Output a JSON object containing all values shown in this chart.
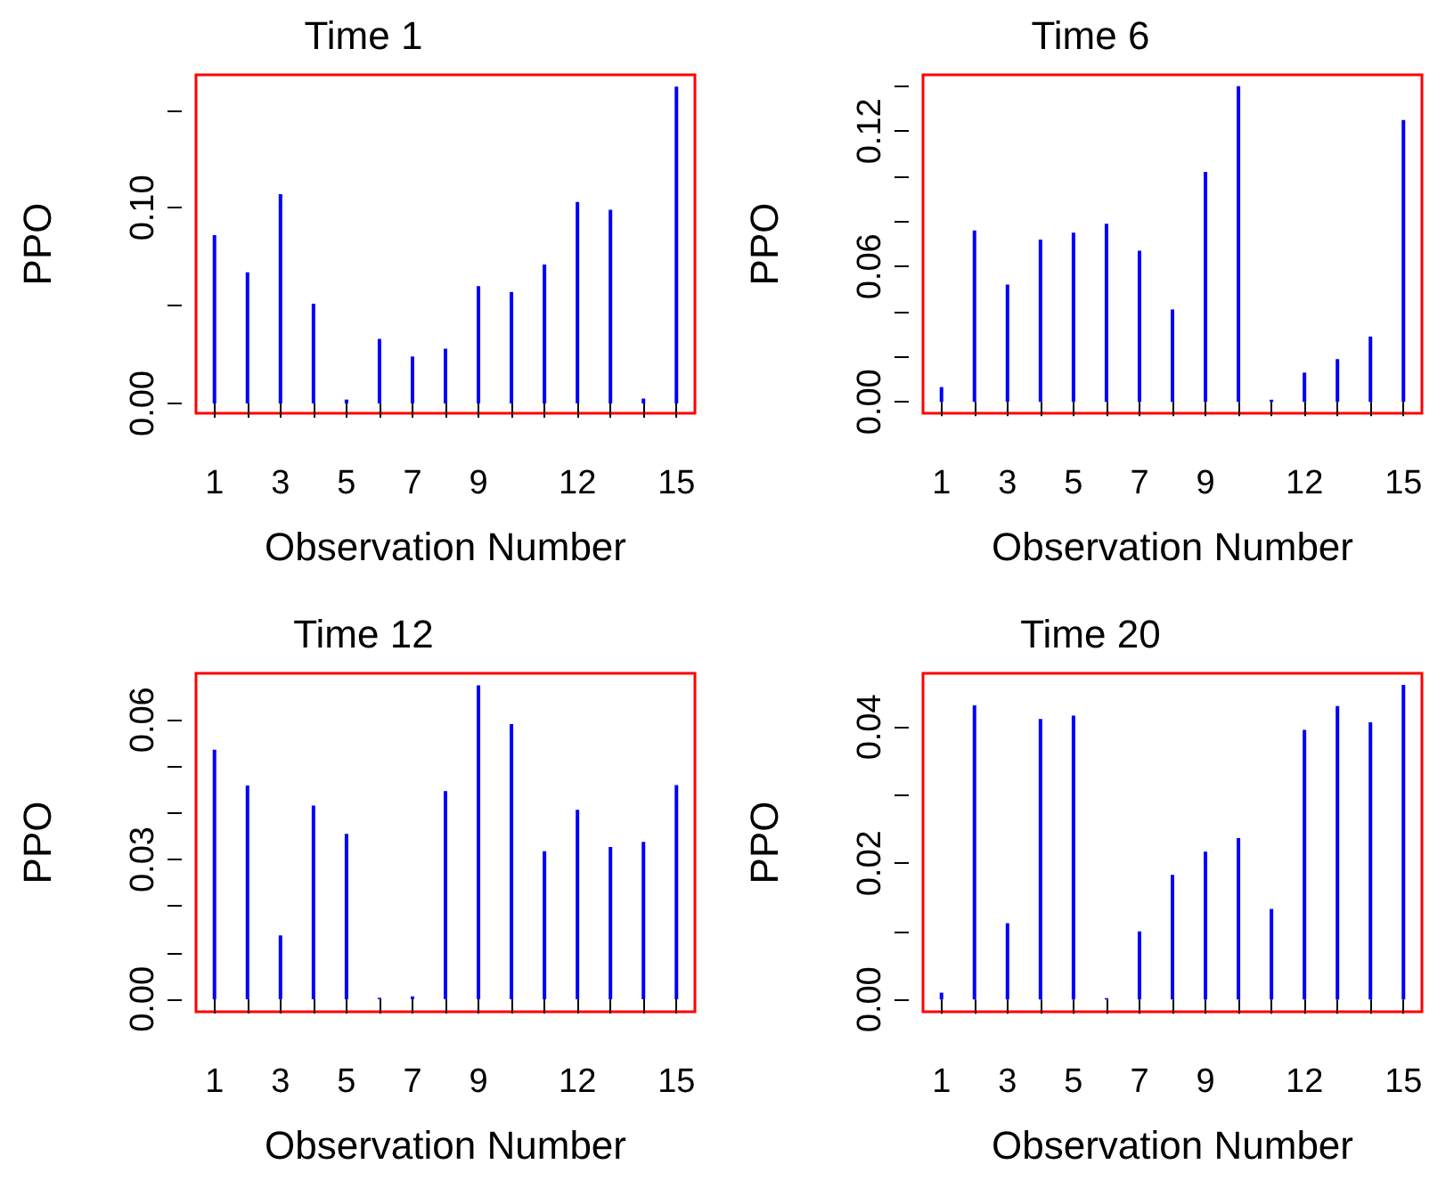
{
  "chart_data": [
    {
      "type": "bar",
      "title": "Time 1",
      "xlabel": "Observation Number",
      "ylabel": "PPO",
      "color": "#0000ff",
      "x": [
        1,
        2,
        3,
        4,
        5,
        6,
        7,
        8,
        9,
        10,
        11,
        12,
        13,
        14,
        15
      ],
      "values": [
        0.086,
        0.067,
        0.107,
        0.051,
        0.002,
        0.033,
        0.024,
        0.028,
        0.06,
        0.057,
        0.071,
        0.103,
        0.099,
        0.0025,
        0.162
      ],
      "xlim": [
        0.44,
        15.56
      ],
      "ylim": [
        -0.005,
        0.168
      ],
      "xticks": [
        1,
        {
          "value": 2,
          "label": null
        },
        3,
        {
          "value": 4,
          "label": null
        },
        5,
        {
          "value": 6,
          "label": null
        },
        7,
        {
          "value": 8,
          "label": null
        },
        9,
        {
          "value": 10,
          "label": null
        },
        {
          "value": 11,
          "label": null
        },
        12,
        {
          "value": 13,
          "label": null
        },
        {
          "value": 14,
          "label": null
        },
        15
      ],
      "yticks": [
        {
          "value": 0,
          "label": "0.00"
        },
        {
          "value": 0.05,
          "label": null
        },
        {
          "value": 0.1,
          "label": "0.10"
        },
        {
          "value": 0.15,
          "label": null
        }
      ]
    },
    {
      "type": "bar",
      "title": "Time 6",
      "xlabel": "Observation Number",
      "ylabel": "PPO",
      "color": "#0000ff",
      "x": [
        1,
        2,
        3,
        4,
        5,
        6,
        7,
        8,
        9,
        10,
        11,
        12,
        13,
        14,
        15
      ],
      "values": [
        0.0066,
        0.076,
        0.052,
        0.072,
        0.075,
        0.079,
        0.067,
        0.041,
        0.102,
        0.14,
        0.001,
        0.013,
        0.019,
        0.029,
        0.125
      ],
      "xlim": [
        0.44,
        15.56
      ],
      "ylim": [
        -0.005,
        0.145
      ],
      "xticks": [
        1,
        {
          "value": 2,
          "label": null
        },
        3,
        {
          "value": 4,
          "label": null
        },
        5,
        {
          "value": 6,
          "label": null
        },
        7,
        {
          "value": 8,
          "label": null
        },
        9,
        {
          "value": 10,
          "label": null
        },
        {
          "value": 11,
          "label": null
        },
        12,
        {
          "value": 13,
          "label": null
        },
        {
          "value": 14,
          "label": null
        },
        15
      ],
      "yticks": [
        {
          "value": 0,
          "label": "0.00"
        },
        {
          "value": 0.02,
          "label": null
        },
        {
          "value": 0.04,
          "label": null
        },
        {
          "value": 0.06,
          "label": "0.06"
        },
        {
          "value": 0.08,
          "label": null
        },
        {
          "value": 0.1,
          "label": null
        },
        {
          "value": 0.12,
          "label": "0.12"
        },
        {
          "value": 0.14,
          "label": null
        }
      ]
    },
    {
      "type": "bar",
      "title": "Time 12",
      "xlabel": "Observation Number",
      "ylabel": "PPO",
      "color": "#0000ff",
      "x": [
        1,
        2,
        3,
        4,
        5,
        6,
        7,
        8,
        9,
        10,
        11,
        12,
        13,
        14,
        15
      ],
      "values": [
        0.0536,
        0.0459,
        0.0137,
        0.0416,
        0.0355,
        0.0003,
        0.0006,
        0.0447,
        0.0674,
        0.0591,
        0.0318,
        0.0407,
        0.0327,
        0.0338,
        0.046
      ],
      "xlim": [
        0.44,
        15.56
      ],
      "ylim": [
        -0.0027,
        0.07
      ],
      "xticks": [
        1,
        {
          "value": 2,
          "label": null
        },
        3,
        {
          "value": 4,
          "label": null
        },
        5,
        {
          "value": 6,
          "label": null
        },
        7,
        {
          "value": 8,
          "label": null
        },
        9,
        {
          "value": 10,
          "label": null
        },
        {
          "value": 11,
          "label": null
        },
        12,
        {
          "value": 13,
          "label": null
        },
        {
          "value": 14,
          "label": null
        },
        15
      ],
      "yticks": [
        {
          "value": 0,
          "label": "0.00"
        },
        {
          "value": 0.01,
          "label": null
        },
        {
          "value": 0.02,
          "label": null
        },
        {
          "value": 0.03,
          "label": "0.03"
        },
        {
          "value": 0.04,
          "label": null
        },
        {
          "value": 0.05,
          "label": null
        },
        {
          "value": 0.06,
          "label": "0.06"
        }
      ]
    },
    {
      "type": "bar",
      "title": "Time 20",
      "xlabel": "Observation Number",
      "ylabel": "PPO",
      "color": "#0000ff",
      "x": [
        1,
        2,
        3,
        4,
        5,
        6,
        7,
        8,
        9,
        10,
        11,
        12,
        13,
        14,
        15
      ],
      "values": [
        0.001,
        0.0432,
        0.0112,
        0.0412,
        0.0417,
        0.0002,
        0.01,
        0.0183,
        0.0217,
        0.0237,
        0.0133,
        0.0396,
        0.0431,
        0.0407,
        0.0462
      ],
      "xlim": [
        0.44,
        15.56
      ],
      "ylim": [
        -0.0018,
        0.0479
      ],
      "xticks": [
        1,
        {
          "value": 2,
          "label": null
        },
        3,
        {
          "value": 4,
          "label": null
        },
        5,
        {
          "value": 6,
          "label": null
        },
        7,
        {
          "value": 8,
          "label": null
        },
        9,
        {
          "value": 10,
          "label": null
        },
        {
          "value": 11,
          "label": null
        },
        12,
        {
          "value": 13,
          "label": null
        },
        {
          "value": 14,
          "label": null
        },
        15
      ],
      "yticks": [
        {
          "value": 0,
          "label": "0.00"
        },
        {
          "value": 0.01,
          "label": null
        },
        {
          "value": 0.02,
          "label": "0.02"
        },
        {
          "value": 0.03,
          "label": null
        },
        {
          "value": 0.04,
          "label": "0.04"
        }
      ]
    }
  ]
}
